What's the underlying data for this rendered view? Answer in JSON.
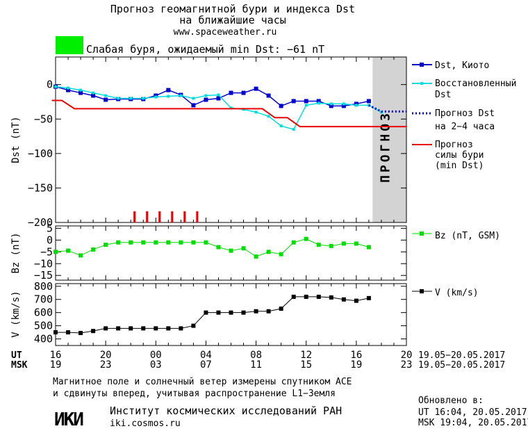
{
  "header": {
    "title_line1": "Прогноз геомагнитной бури и индекса Dst",
    "title_line2": "на ближайшие часы",
    "website": "www.spaceweather.ru",
    "storm_text": "Слабая буря, ожидаемый min Dst: −61 nT",
    "storm_color": "#00ee00"
  },
  "colors": {
    "dst": "#0000cc",
    "restored": "#00dddd",
    "forecast": "#0000cc",
    "storm": "#ee0000",
    "bz": "#00dd00",
    "v": "#000000",
    "forecast_band": "#d3d3d3",
    "forecast_text": "#a0a0a0"
  },
  "chart_data": [
    {
      "type": "line",
      "panel": "dst",
      "ylabel": "Dst (nT)",
      "ylim": [
        -200,
        40
      ],
      "yticks": [
        0,
        -50,
        -100,
        -150,
        -200
      ],
      "xlim": [
        16,
        44
      ],
      "forecast_region": [
        41.3,
        44
      ],
      "forecast_label": "ПРОГНОЗ",
      "series": [
        {
          "name": "Dst, Киото",
          "key": "dst",
          "x": [
            16,
            17,
            18,
            19,
            20,
            21,
            22,
            23,
            24,
            25,
            26,
            27,
            28,
            29,
            30,
            31,
            32,
            33,
            34,
            35,
            36,
            37,
            38,
            39,
            40,
            41
          ],
          "y": [
            -3,
            -8,
            -12,
            -16,
            -22,
            -21,
            -21,
            -21,
            -16,
            -8,
            -15,
            -30,
            -22,
            -20,
            -12,
            -12,
            -6,
            -16,
            -31,
            -24,
            -24,
            -24,
            -31,
            -31,
            -28,
            -24
          ]
        },
        {
          "name": "Восстановленный Dst",
          "key": "restored",
          "x": [
            16,
            17,
            18,
            19,
            20,
            21,
            22,
            23,
            24,
            25,
            26,
            27,
            28,
            29,
            30,
            31,
            32,
            33,
            34,
            35,
            36,
            37,
            38,
            39,
            40,
            41,
            42
          ],
          "y": [
            -3,
            -5,
            -8,
            -12,
            -16,
            -20,
            -20,
            -20,
            -18,
            -17,
            -16,
            -20,
            -16,
            -15,
            -34,
            -36,
            -40,
            -46,
            -60,
            -65,
            -30,
            -27,
            -28,
            -28,
            -30,
            -30,
            -40
          ]
        },
        {
          "name": "Прогноз Dst на 2-4 часа",
          "key": "forecast",
          "style": "dotted",
          "x": [
            41,
            42,
            43,
            44
          ],
          "y": [
            -30,
            -39,
            -39,
            -39
          ]
        },
        {
          "name": "Прогноз силы бури (min Dst)",
          "key": "storm",
          "style": "step",
          "x": [
            15.7,
            16.5,
            17.5,
            32.5,
            33.5,
            34.5,
            35.5,
            44
          ],
          "y": [
            -23,
            -23,
            -35,
            -35,
            -48,
            -48,
            -61,
            -61
          ]
        }
      ],
      "markers_x": [
        22.3,
        23.3,
        24.3,
        25.3,
        26.3,
        27.3
      ]
    },
    {
      "type": "line",
      "panel": "bz",
      "ylabel": "Bz (nT)",
      "ylim": [
        -17,
        6
      ],
      "yticks": [
        5,
        0,
        -5,
        -10,
        -15
      ],
      "series": [
        {
          "name": "Bz (nT, GSM)",
          "key": "bz",
          "x": [
            16,
            17,
            18,
            19,
            20,
            21,
            22,
            23,
            24,
            25,
            26,
            27,
            28,
            29,
            30,
            31,
            32,
            33,
            34,
            35,
            36,
            37,
            38,
            39,
            40,
            41,
            42
          ],
          "y": [
            -5,
            -4.5,
            -6.5,
            -4,
            -2,
            -1,
            -1,
            -1,
            -1,
            -1,
            -1,
            -1,
            -1,
            -3,
            -4.5,
            -3.5,
            -7,
            -5,
            -6,
            -1,
            0.5,
            -2,
            -2.5,
            -1.5,
            -1.5,
            -3,
            null
          ]
        }
      ]
    },
    {
      "type": "line",
      "panel": "v",
      "ylabel": "V (km/s)",
      "ylim": [
        350,
        820
      ],
      "yticks": [
        800,
        700,
        600,
        500,
        400
      ],
      "series": [
        {
          "name": "V (km/s)",
          "key": "v",
          "x": [
            16,
            17,
            18,
            19,
            20,
            21,
            22,
            23,
            24,
            25,
            26,
            27,
            28,
            29,
            30,
            31,
            32,
            33,
            34,
            35,
            36,
            37,
            38,
            39,
            40,
            41,
            42
          ],
          "y": [
            450,
            450,
            445,
            460,
            480,
            480,
            480,
            480,
            480,
            480,
            480,
            500,
            600,
            600,
            600,
            600,
            610,
            610,
            630,
            720,
            720,
            720,
            715,
            700,
            690,
            710,
            null
          ]
        }
      ]
    }
  ],
  "x_axis": {
    "ut_label": "UT",
    "msk_label": "MSK",
    "ut_ticks": [
      "16",
      "20",
      "00",
      "04",
      "08",
      "12",
      "16",
      "20"
    ],
    "msk_ticks": [
      "19",
      "23",
      "03",
      "07",
      "11",
      "15",
      "19",
      "23"
    ],
    "ut_range": "19.05−20.05.2017",
    "msk_range": "19.05−20.05.2017"
  },
  "legend": {
    "dst": "Dst, Киото",
    "restored_1": "Восстановленный",
    "restored_2": "Dst",
    "forecast_1": "Прогноз Dst",
    "forecast_2": "на 2−4 часа",
    "storm_1": "Прогноз",
    "storm_2": "силы бури",
    "storm_3": "(min Dst)",
    "bz": "Bz (nT, GSM)",
    "v": "V (km/s)"
  },
  "footer": {
    "note_line1": "Магнитное поле и солнечный ветер измерены спутником ACE",
    "note_line2": "и сдвинуты вперед, учитывая распространение L1−Земля",
    "updated_label": "Обновлено в:",
    "updated_ut": "UT  16:04, 20.05.2017",
    "updated_msk": "MSK 19:04, 20.05.2017",
    "logo_text": "ИКИ",
    "institute": "Институт космических исследований РАН",
    "institute_url": "iki.cosmos.ru"
  }
}
